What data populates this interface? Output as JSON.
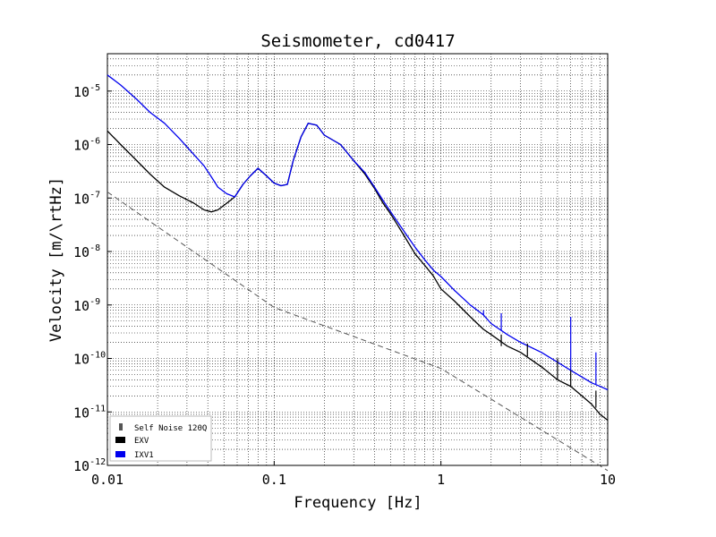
{
  "chart_data": {
    "type": "line",
    "title": "Seismometer, cd0417",
    "xlabel": "Frequency [Hz]",
    "ylabel": "Velocity [m/\\rtHz]",
    "x_scale": "log",
    "y_scale": "log",
    "xlim": [
      0.01,
      10
    ],
    "ylim": [
      1e-12,
      5e-05
    ],
    "grid": true,
    "legend_placement": "lower-left",
    "x_ticks": [
      {
        "value": 0.01,
        "label": "0.01"
      },
      {
        "value": 0.1,
        "label": "0.1"
      },
      {
        "value": 1,
        "label": "1"
      },
      {
        "value": 10,
        "label": "10"
      }
    ],
    "y_ticks": [
      {
        "value": 1e-12,
        "base": "10",
        "exp": "-12"
      },
      {
        "value": 1e-11,
        "base": "10",
        "exp": "-11"
      },
      {
        "value": 1e-10,
        "base": "10",
        "exp": "-10"
      },
      {
        "value": 1e-09,
        "base": "10",
        "exp": "-9"
      },
      {
        "value": 1e-08,
        "base": "10",
        "exp": "-8"
      },
      {
        "value": 1e-07,
        "base": "10",
        "exp": "-7"
      },
      {
        "value": 1e-06,
        "base": "10",
        "exp": "-6"
      },
      {
        "value": 1e-05,
        "base": "10",
        "exp": "-5"
      }
    ],
    "series": [
      {
        "name": "Self Noise 120Q",
        "color": "#555555",
        "style": "dashed",
        "points": [
          [
            0.01,
            1.3e-07
          ],
          [
            0.1,
            9e-10
          ],
          [
            1,
            6.5e-11
          ],
          [
            10,
            8e-13
          ]
        ]
      },
      {
        "name": "EXV",
        "color": "#000000",
        "style": "solid",
        "points": [
          [
            0.01,
            1.8e-06
          ],
          [
            0.012,
            1e-06
          ],
          [
            0.015,
            5e-07
          ],
          [
            0.018,
            2.8e-07
          ],
          [
            0.022,
            1.6e-07
          ],
          [
            0.027,
            1.1e-07
          ],
          [
            0.033,
            8e-08
          ],
          [
            0.038,
            6e-08
          ],
          [
            0.042,
            5.5e-08
          ],
          [
            0.046,
            6e-08
          ],
          [
            0.052,
            8e-08
          ],
          [
            0.058,
            1.05e-07
          ],
          [
            0.065,
            1.8e-07
          ],
          [
            0.072,
            2.6e-07
          ],
          [
            0.08,
            3.6e-07
          ],
          [
            0.09,
            2.6e-07
          ],
          [
            0.1,
            1.9e-07
          ],
          [
            0.11,
            1.7e-07
          ],
          [
            0.12,
            1.8e-07
          ],
          [
            0.13,
            5e-07
          ],
          [
            0.145,
            1.4e-06
          ],
          [
            0.16,
            2.5e-06
          ],
          [
            0.18,
            2.3e-06
          ],
          [
            0.2,
            1.5e-06
          ],
          [
            0.25,
            1e-06
          ],
          [
            0.3,
            5e-07
          ],
          [
            0.35,
            2.8e-07
          ],
          [
            0.4,
            1.5e-07
          ],
          [
            0.45,
            8e-08
          ],
          [
            0.5,
            5e-08
          ],
          [
            0.6,
            2e-08
          ],
          [
            0.7,
            9e-09
          ],
          [
            0.8,
            5.5e-09
          ],
          [
            0.9,
            3.5e-09
          ],
          [
            1.0,
            2e-09
          ],
          [
            1.2,
            1.2e-09
          ],
          [
            1.5,
            6e-10
          ],
          [
            1.8,
            3.5e-10
          ],
          [
            2.0,
            2.8e-10
          ],
          [
            2.5,
            1.7e-10
          ],
          [
            3.0,
            1.3e-10
          ],
          [
            4.0,
            7e-11
          ],
          [
            5.0,
            4e-11
          ],
          [
            6.0,
            3e-11
          ],
          [
            7.0,
            2e-11
          ],
          [
            8.0,
            1.4e-11
          ],
          [
            9.0,
            9e-12
          ],
          [
            10.0,
            7e-12
          ]
        ]
      },
      {
        "name": "IXV1",
        "color": "#0000ee",
        "style": "solid",
        "points": [
          [
            0.01,
            2e-05
          ],
          [
            0.012,
            1.3e-05
          ],
          [
            0.015,
            7e-06
          ],
          [
            0.018,
            4e-06
          ],
          [
            0.022,
            2.5e-06
          ],
          [
            0.027,
            1.3e-06
          ],
          [
            0.033,
            6.5e-07
          ],
          [
            0.038,
            4e-07
          ],
          [
            0.042,
            2.5e-07
          ],
          [
            0.046,
            1.6e-07
          ],
          [
            0.052,
            1.2e-07
          ],
          [
            0.058,
            1.05e-07
          ],
          [
            0.065,
            1.8e-07
          ],
          [
            0.072,
            2.6e-07
          ],
          [
            0.08,
            3.6e-07
          ],
          [
            0.09,
            2.6e-07
          ],
          [
            0.1,
            1.9e-07
          ],
          [
            0.11,
            1.7e-07
          ],
          [
            0.12,
            1.8e-07
          ],
          [
            0.13,
            5e-07
          ],
          [
            0.145,
            1.4e-06
          ],
          [
            0.16,
            2.5e-06
          ],
          [
            0.18,
            2.3e-06
          ],
          [
            0.2,
            1.5e-06
          ],
          [
            0.25,
            1e-06
          ],
          [
            0.3,
            5e-07
          ],
          [
            0.35,
            3e-07
          ],
          [
            0.4,
            1.6e-07
          ],
          [
            0.45,
            9e-08
          ],
          [
            0.5,
            5.5e-08
          ],
          [
            0.6,
            2.4e-08
          ],
          [
            0.7,
            1.2e-08
          ],
          [
            0.8,
            7e-09
          ],
          [
            0.9,
            4.5e-09
          ],
          [
            1.0,
            3.4e-09
          ],
          [
            1.2,
            1.9e-09
          ],
          [
            1.5,
            1e-09
          ],
          [
            1.8,
            6.5e-10
          ],
          [
            2.0,
            4.5e-10
          ],
          [
            2.5,
            2.8e-10
          ],
          [
            3.0,
            2e-10
          ],
          [
            4.0,
            1.3e-10
          ],
          [
            5.0,
            8.5e-11
          ],
          [
            6.0,
            6e-11
          ],
          [
            7.0,
            4.5e-11
          ],
          [
            8.0,
            3.5e-11
          ],
          [
            9.0,
            3e-11
          ],
          [
            10.0,
            2.6e-11
          ]
        ]
      }
    ],
    "spikes": [
      {
        "series": "IXV1",
        "x": 6.0,
        "base": 6e-11,
        "peak": 6e-10
      },
      {
        "series": "IXV1",
        "x": 8.5,
        "base": 3.3e-11,
        "peak": 1.3e-10
      },
      {
        "series": "IXV1",
        "x": 2.3,
        "base": 3.3e-10,
        "peak": 7e-10
      },
      {
        "series": "IXV1",
        "x": 1.8,
        "base": 6.5e-10,
        "peak": 8e-10
      },
      {
        "series": "EXV",
        "x": 5.0,
        "base": 4e-11,
        "peak": 1e-10
      },
      {
        "series": "EXV",
        "x": 6.0,
        "base": 3e-11,
        "peak": 6e-11
      },
      {
        "series": "EXV",
        "x": 8.5,
        "base": 1.2e-11,
        "peak": 2.5e-11
      },
      {
        "series": "EXV",
        "x": 3.3,
        "base": 1.1e-10,
        "peak": 1.9e-10
      },
      {
        "series": "EXV",
        "x": 2.3,
        "base": 1.7e-10,
        "peak": 2.8e-10
      }
    ]
  }
}
